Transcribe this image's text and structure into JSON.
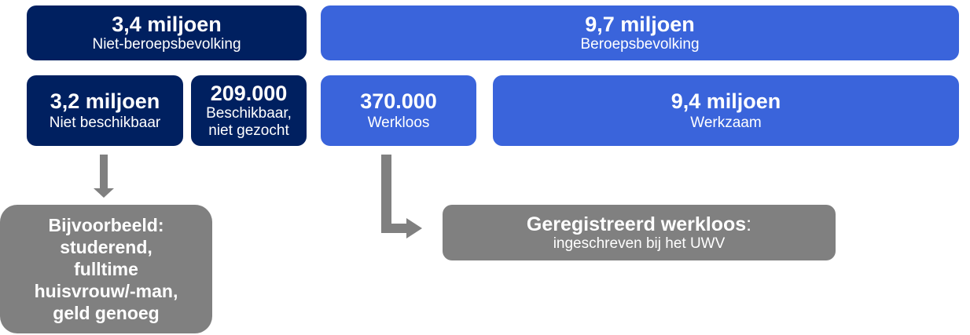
{
  "colors": {
    "dark": "#002060",
    "blue": "#3a64db",
    "gray": "#808080"
  },
  "non_labor_force": {
    "value": "3,4 miljoen",
    "label": "Niet-beroepsbevolking"
  },
  "labor_force": {
    "value": "9,7 miljoen",
    "label": "Beroepsbevolking"
  },
  "not_available": {
    "value": "3,2 miljoen",
    "label": "Niet beschikbaar"
  },
  "available_not_seeking": {
    "value": "209.000",
    "label_line1": "Beschikbaar,",
    "label_line2": "niet gezocht"
  },
  "unemployed": {
    "value": "370.000",
    "label": "Werkloos"
  },
  "employed": {
    "value": "9,4 miljoen",
    "label": "Werkzaam"
  },
  "examples": {
    "lines": [
      "Bijvoorbeeld:",
      "studerend,",
      "fulltime",
      "huisvrouw/-man,",
      "geld genoeg"
    ]
  },
  "registered": {
    "title": "Geregistreerd werkloos",
    "colon": ":",
    "subtitle": "ingeschreven bij het UWV"
  }
}
